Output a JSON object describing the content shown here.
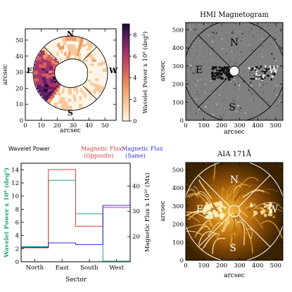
{
  "chart_data": [
    {
      "type": "heatmap",
      "panel": "wavelet-power-map",
      "xlabel": "arcsec",
      "ylabel": "arcsec",
      "xlim": [
        0,
        57
      ],
      "ylim": [
        0,
        57
      ],
      "xticks": [
        "0",
        "10",
        "20",
        "30",
        "40",
        "50"
      ],
      "yticks": [
        "0",
        "10",
        "20",
        "30",
        "40",
        "50"
      ],
      "sector_labels": {
        "north": "N",
        "east": "E",
        "south": "S",
        "west": "W"
      },
      "colorbar": {
        "label": "Wavelet Power x 10⁸ (deg²)",
        "ticks": [
          "0",
          "2",
          "4",
          "6",
          "8"
        ],
        "range": [
          0,
          9
        ],
        "colors": [
          "#fff5e6",
          "#f7c99a",
          "#ee9a6a",
          "#d8605a",
          "#a3356a",
          "#5e1f66",
          "#1a0a2e"
        ]
      }
    },
    {
      "type": "heatmap",
      "panel": "hmi-magnetogram",
      "title": "HMI Magnetogram",
      "xlabel": "arcsec",
      "ylabel": "arcsec",
      "xlim": [
        0,
        540
      ],
      "ylim": [
        0,
        540
      ],
      "xticks": [
        "0",
        "100",
        "200",
        "300",
        "400",
        "500"
      ],
      "yticks": [
        "0",
        "100",
        "200",
        "300",
        "400",
        "500"
      ],
      "sector_labels": {
        "north": "N",
        "east": "E",
        "south": "S",
        "west": "W"
      }
    },
    {
      "type": "line",
      "panel": "sector-power-flux",
      "step": true,
      "xlabel": "Sector",
      "categories": [
        "North",
        "East",
        "South",
        "West"
      ],
      "ylabel": "Wavelet Power x 10⁸ (deg²)",
      "ylabel_right": "Magnetic Flux x 10²⁰ (Mx)",
      "ylim": [
        0,
        15
      ],
      "ylim_right": [
        10,
        49
      ],
      "yticks": [
        "0",
        "2",
        "4",
        "6",
        "8",
        "10",
        "12",
        "14"
      ],
      "yticks_right": [
        "20",
        "30",
        "40"
      ],
      "legend": [
        "Wavelet Power",
        "Magnetic Flux (Opposite)",
        "Magnetic Flux (Same)"
      ],
      "series": [
        {
          "name": "Wavelet Power",
          "axis": "left",
          "color": "#1fa873",
          "values": [
            2.3,
            12.4,
            7.3,
            0.1
          ]
        },
        {
          "name": "Magnetic Flux (Opposite)",
          "axis": "right",
          "color": "#e23b3b",
          "values": [
            15.5,
            46.5,
            24.0,
            31.5
          ]
        },
        {
          "name": "Magnetic Flux (Same)",
          "axis": "right",
          "color": "#2e2ed6",
          "values": [
            15.7,
            17.5,
            16.8,
            32.3
          ]
        }
      ]
    },
    {
      "type": "heatmap",
      "panel": "aia-171",
      "title": "AIA 171Å",
      "xlabel": "arcsec",
      "ylabel": "arcsec",
      "xlim": [
        0,
        540
      ],
      "ylim": [
        0,
        540
      ],
      "xticks": [
        "0",
        "100",
        "200",
        "300",
        "400",
        "500"
      ],
      "yticks": [
        "0",
        "100",
        "200",
        "300",
        "400",
        "500"
      ],
      "sector_labels": {
        "north": "N",
        "east": "E",
        "south": "S",
        "west": "W"
      }
    }
  ],
  "legend_text": {
    "wavelet": "Wavelet Power",
    "opposite_1": "Magnetic Flux",
    "opposite_2": "(Opposite)",
    "same_1": "Magnetic Flux",
    "same_2": "(Same)"
  },
  "colors": {
    "wavelet": "#1fa873",
    "opposite": "#e23b3b",
    "same": "#2e2ed6",
    "hmi_bg": "#808080",
    "aia_bg": "#3a2200"
  }
}
